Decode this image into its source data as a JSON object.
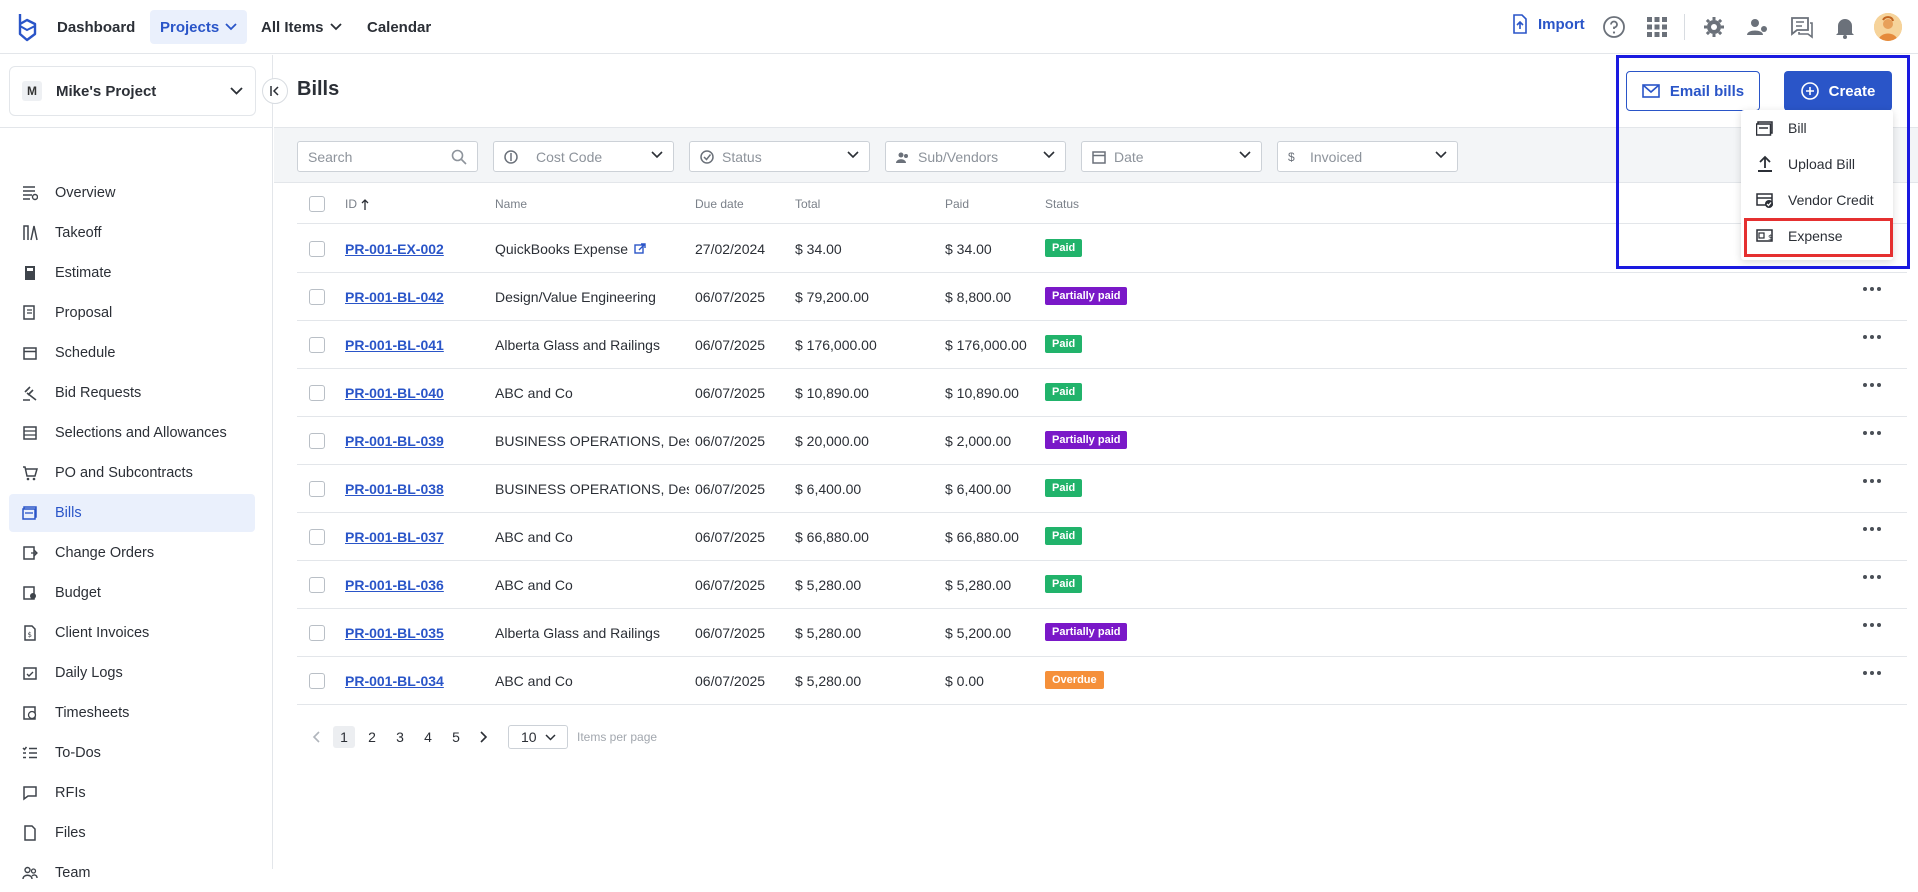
{
  "topnav": {
    "dashboard": "Dashboard",
    "projects": "Projects",
    "all_items": "All Items",
    "calendar": "Calendar",
    "import": "Import"
  },
  "sidebar": {
    "project_initial": "M",
    "project_name": "Mike's Project",
    "items": [
      {
        "label": "Overview",
        "icon": "overview-icon"
      },
      {
        "label": "Takeoff",
        "icon": "takeoff-icon"
      },
      {
        "label": "Estimate",
        "icon": "calculator-icon"
      },
      {
        "label": "Proposal",
        "icon": "proposal-icon"
      },
      {
        "label": "Schedule",
        "icon": "calendar-icon"
      },
      {
        "label": "Bid Requests",
        "icon": "gavel-icon"
      },
      {
        "label": "Selections and Allowances",
        "icon": "selections-icon"
      },
      {
        "label": "PO and Subcontracts",
        "icon": "cart-icon"
      },
      {
        "label": "Bills",
        "icon": "bill-icon",
        "active": true
      },
      {
        "label": "Change Orders",
        "icon": "change-order-icon"
      },
      {
        "label": "Budget",
        "icon": "budget-icon"
      },
      {
        "label": "Client Invoices",
        "icon": "invoice-icon"
      },
      {
        "label": "Daily Logs",
        "icon": "daily-log-icon"
      },
      {
        "label": "Timesheets",
        "icon": "timesheet-icon"
      },
      {
        "label": "To-Dos",
        "icon": "todo-icon"
      },
      {
        "label": "RFIs",
        "icon": "rfi-icon"
      },
      {
        "label": "Files",
        "icon": "file-icon"
      },
      {
        "label": "Team",
        "icon": "team-icon"
      }
    ]
  },
  "page": {
    "title": "Bills",
    "email_bills": "Email bills",
    "create": "Create"
  },
  "create_menu": {
    "items": [
      "Bill",
      "Upload Bill",
      "Vendor Credit",
      "Expense"
    ]
  },
  "filters": {
    "search_placeholder": "Search",
    "cost_code": "Cost Code",
    "status": "Status",
    "sub_vendors": "Sub/Vendors",
    "date": "Date",
    "invoiced": "Invoiced"
  },
  "table": {
    "columns": {
      "id": "ID",
      "name": "Name",
      "due_date": "Due date",
      "total": "Total",
      "paid": "Paid",
      "status": "Status"
    },
    "rows": [
      {
        "id": "PR-001-EX-002",
        "name": "QuickBooks Expense",
        "due": "27/02/2024",
        "total": "$ 34.00",
        "paid": "$ 34.00",
        "status": "Paid"
      },
      {
        "id": "PR-001-BL-042",
        "name": "Design/Value Engineering",
        "due": "06/07/2025",
        "total": "$ 79,200.00",
        "paid": "$ 8,800.00",
        "status": "Partially paid"
      },
      {
        "id": "PR-001-BL-041",
        "name": "Alberta Glass and Railings",
        "due": "06/07/2025",
        "total": "$ 176,000.00",
        "paid": "$ 176,000.00",
        "status": "Paid"
      },
      {
        "id": "PR-001-BL-040",
        "name": "ABC and Co",
        "due": "06/07/2025",
        "total": "$ 10,890.00",
        "paid": "$ 10,890.00",
        "status": "Paid"
      },
      {
        "id": "PR-001-BL-039",
        "name": "BUSINESS OPERATIONS, Design",
        "due": "06/07/2025",
        "total": "$ 20,000.00",
        "paid": "$ 2,000.00",
        "status": "Partially paid"
      },
      {
        "id": "PR-001-BL-038",
        "name": "BUSINESS OPERATIONS, Design",
        "due": "06/07/2025",
        "total": "$ 6,400.00",
        "paid": "$ 6,400.00",
        "status": "Paid"
      },
      {
        "id": "PR-001-BL-037",
        "name": "ABC and Co",
        "due": "06/07/2025",
        "total": "$ 66,880.00",
        "paid": "$ 66,880.00",
        "status": "Paid"
      },
      {
        "id": "PR-001-BL-036",
        "name": "ABC and Co",
        "due": "06/07/2025",
        "total": "$ 5,280.00",
        "paid": "$ 5,280.00",
        "status": "Paid"
      },
      {
        "id": "PR-001-BL-035",
        "name": "Alberta Glass and Railings",
        "due": "06/07/2025",
        "total": "$ 5,280.00",
        "paid": "$ 5,200.00",
        "status": "Partially paid"
      },
      {
        "id": "PR-001-BL-034",
        "name": "ABC and Co",
        "due": "06/07/2025",
        "total": "$ 5,280.00",
        "paid": "$ 0.00",
        "status": "Overdue"
      }
    ]
  },
  "status_colors": {
    "Paid": "#21b36b",
    "Partially paid": "#7a18c8",
    "Overdue": "#f5903a"
  },
  "pagination": {
    "pages": [
      "1",
      "2",
      "3",
      "4",
      "5"
    ],
    "current": "1",
    "per_page": "10",
    "per_page_label": "Items per page"
  },
  "colors": {
    "accent": "#2a55c8",
    "highlight_blue": "#1a1ae0",
    "highlight_red": "#e53030"
  }
}
